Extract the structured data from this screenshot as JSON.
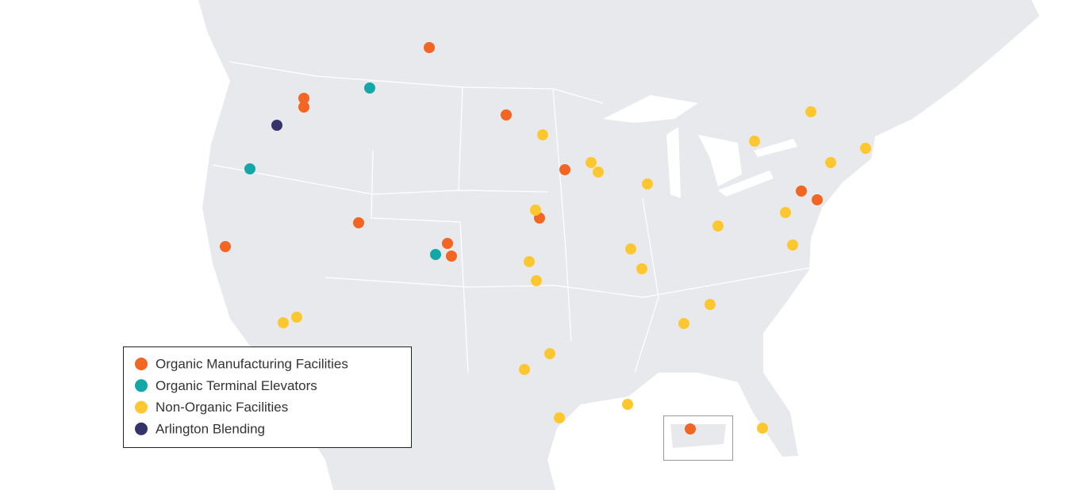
{
  "legend": {
    "items": [
      {
        "label": "Organic Manufacturing Facilities",
        "color": "#f26522"
      },
      {
        "label": "Organic Terminal Elevators",
        "color": "#13a7a8"
      },
      {
        "label": "Non-Organic Facilities",
        "color": "#fdc82f"
      },
      {
        "label": "Arlington Blending",
        "color": "#35336b"
      }
    ]
  }
}
